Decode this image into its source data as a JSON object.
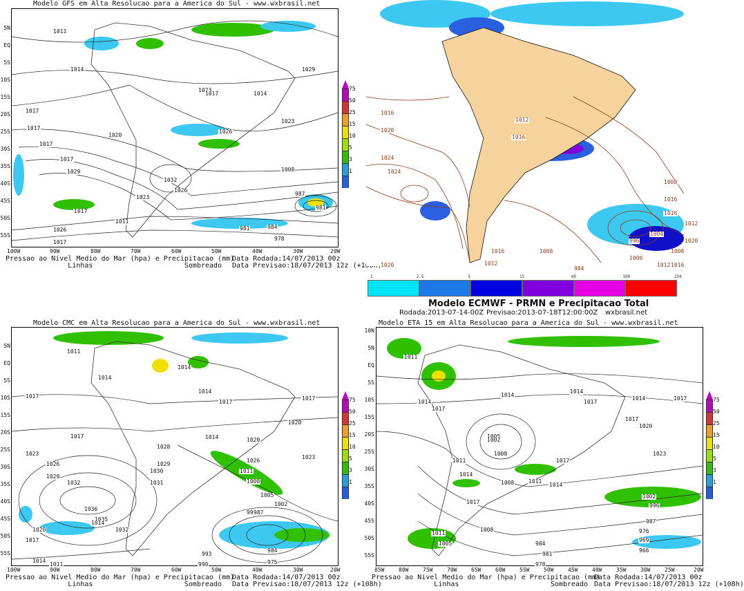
{
  "panels": {
    "gfs": {
      "title": "Modelo GFS em Alta Resolucao para a America do Sul - www.wxbrasil.net",
      "lat_labels": [
        "5N",
        "EQ",
        "5S",
        "10S",
        "15S",
        "20S",
        "25S",
        "30S",
        "35S",
        "40S",
        "45S",
        "50S",
        "55S"
      ],
      "lon_labels": [
        "100W",
        "90W",
        "80W",
        "70W",
        "60W",
        "50W",
        "40W",
        "30W",
        "20W"
      ],
      "footer_left": "Pressao ao Nivel Medio do Mar (hpa) e Precipitacao (mm)\n               Linhas                      Sombreado",
      "footer_right": "Data Rodada:14/07/2013 00z\nData Previsao:18/07/2013 12z (+108h)",
      "isobars": [
        "1011",
        "1014",
        "1017",
        "1017",
        "1020",
        "1017",
        "1023",
        "1017",
        "1026",
        "1029",
        "1029",
        "1032",
        "1026",
        "1023",
        "1017",
        "1017",
        "1014",
        "1023",
        "1008",
        "1026",
        "1017",
        "981",
        "984",
        "978",
        "987",
        "981",
        "1011"
      ]
    },
    "cmc": {
      "title": "Modelo CMC em Alta Resolucao para a America do Sul - www.wxbrasil.net",
      "lat_labels": [
        "5N",
        "EQ",
        "5S",
        "10S",
        "15S",
        "20S",
        "25S",
        "30S",
        "35S",
        "40S",
        "45S",
        "50S",
        "55S"
      ],
      "lon_labels": [
        "100W",
        "90W",
        "80W",
        "70W",
        "60W",
        "50W",
        "40W",
        "30W",
        "20W"
      ],
      "footer_left": "Pressao ao Nivel Medio do Mar (hpa) e Precipitacao (mm)\n               Linhas                      Sombreado",
      "footer_right": "Data Rodada:14/07/2013 00z\nData Previsao:18/07/2013 12z (+108h)",
      "isobars": [
        "1011",
        "1014",
        "1014",
        "1017",
        "1014",
        "1017",
        "1017",
        "1020",
        "1017",
        "1023",
        "1026",
        "1029",
        "1032",
        "1035",
        "1036",
        "1032",
        "1030",
        "1031",
        "1029",
        "1028",
        "1020",
        "1023",
        "1026",
        "1020",
        "1014",
        "1011",
        "1008",
        "1005",
        "1002",
        "999",
        "987",
        "993",
        "990",
        "984",
        "975",
        "1014",
        "1011",
        "1017",
        "1014"
      ]
    },
    "eta": {
      "title": "Modelo ETA 15 em Alta Resolucao para a America do Sul - www.wxbrasil.net",
      "lat_labels": [
        "10N",
        "5N",
        "EQ",
        "5S",
        "10S",
        "15S",
        "20S",
        "25S",
        "30S",
        "35S",
        "40S",
        "45S",
        "50S",
        "55S"
      ],
      "lon_labels": [
        "85W",
        "80W",
        "75W",
        "70W",
        "65W",
        "60W",
        "55W",
        "50W",
        "45W",
        "40W",
        "35W",
        "30W",
        "25W",
        "20W"
      ],
      "footer_left": "Pressao ao Nivel Medio do Mar (hpa) e Precipitacao (mm)\n               Linhas                      Sombreado",
      "footer_right": "Data Rodada:14/07/2013 00z\nData Previsao:18/07/2013 12z (+108h)",
      "isobars": [
        "1011",
        "1014",
        "1014",
        "1014",
        "1017",
        "1017",
        "1014",
        "1017",
        "1020",
        "1017",
        "1023",
        "1005",
        "1008",
        "1002",
        "1008",
        "1011",
        "1014",
        "1017",
        "1011",
        "1014",
        "1017",
        "1008",
        "1002",
        "996",
        "987",
        "976",
        "984",
        "981",
        "978",
        "969",
        "966",
        "1011",
        "1005"
      ]
    },
    "ecmwf": {
      "title": "Modelo ECMWF - PRMN e Precipitacao Total",
      "subtitle_run": "Rodada:2013-07-14-00Z",
      "subtitle_fcst": "Previsao:2013-07-18T12:00:00Z",
      "site": "wxbrasil.net",
      "colorbar_ticks": [
        "1",
        "2.5",
        "5",
        "15",
        "40",
        "100",
        "250"
      ],
      "colorbar_colors": [
        "#00e5f5",
        "#1e78e6",
        "#0000e0",
        "#8000e0",
        "#e600e6",
        "#ff0000"
      ],
      "isobars": [
        "1016",
        "1020",
        "1024",
        "1024",
        "1012",
        "1016",
        "1008",
        "1016",
        "1016",
        "1012",
        "1020",
        "1016",
        "1012",
        "1008",
        "1004",
        "996",
        "984",
        "1000",
        "1008",
        "1012",
        "1016",
        "1020"
      ]
    }
  },
  "colorbar": {
    "labels": [
      "75",
      "50",
      "25",
      "15",
      "10",
      "5",
      "3",
      "1"
    ],
    "colors": [
      "#c000c0",
      "#e03030",
      "#f0a020",
      "#f0e000",
      "#9be000",
      "#30c000",
      "#22a0e0",
      "#1e60e6"
    ]
  },
  "colors": {
    "land_ecmwf": "#f6d39c",
    "isobar_ecmwf": "#8b3a1a",
    "precip_light": "#3cc8f0",
    "precip_mid": "#2a60e0",
    "precip_heavy": "#1010c8"
  }
}
